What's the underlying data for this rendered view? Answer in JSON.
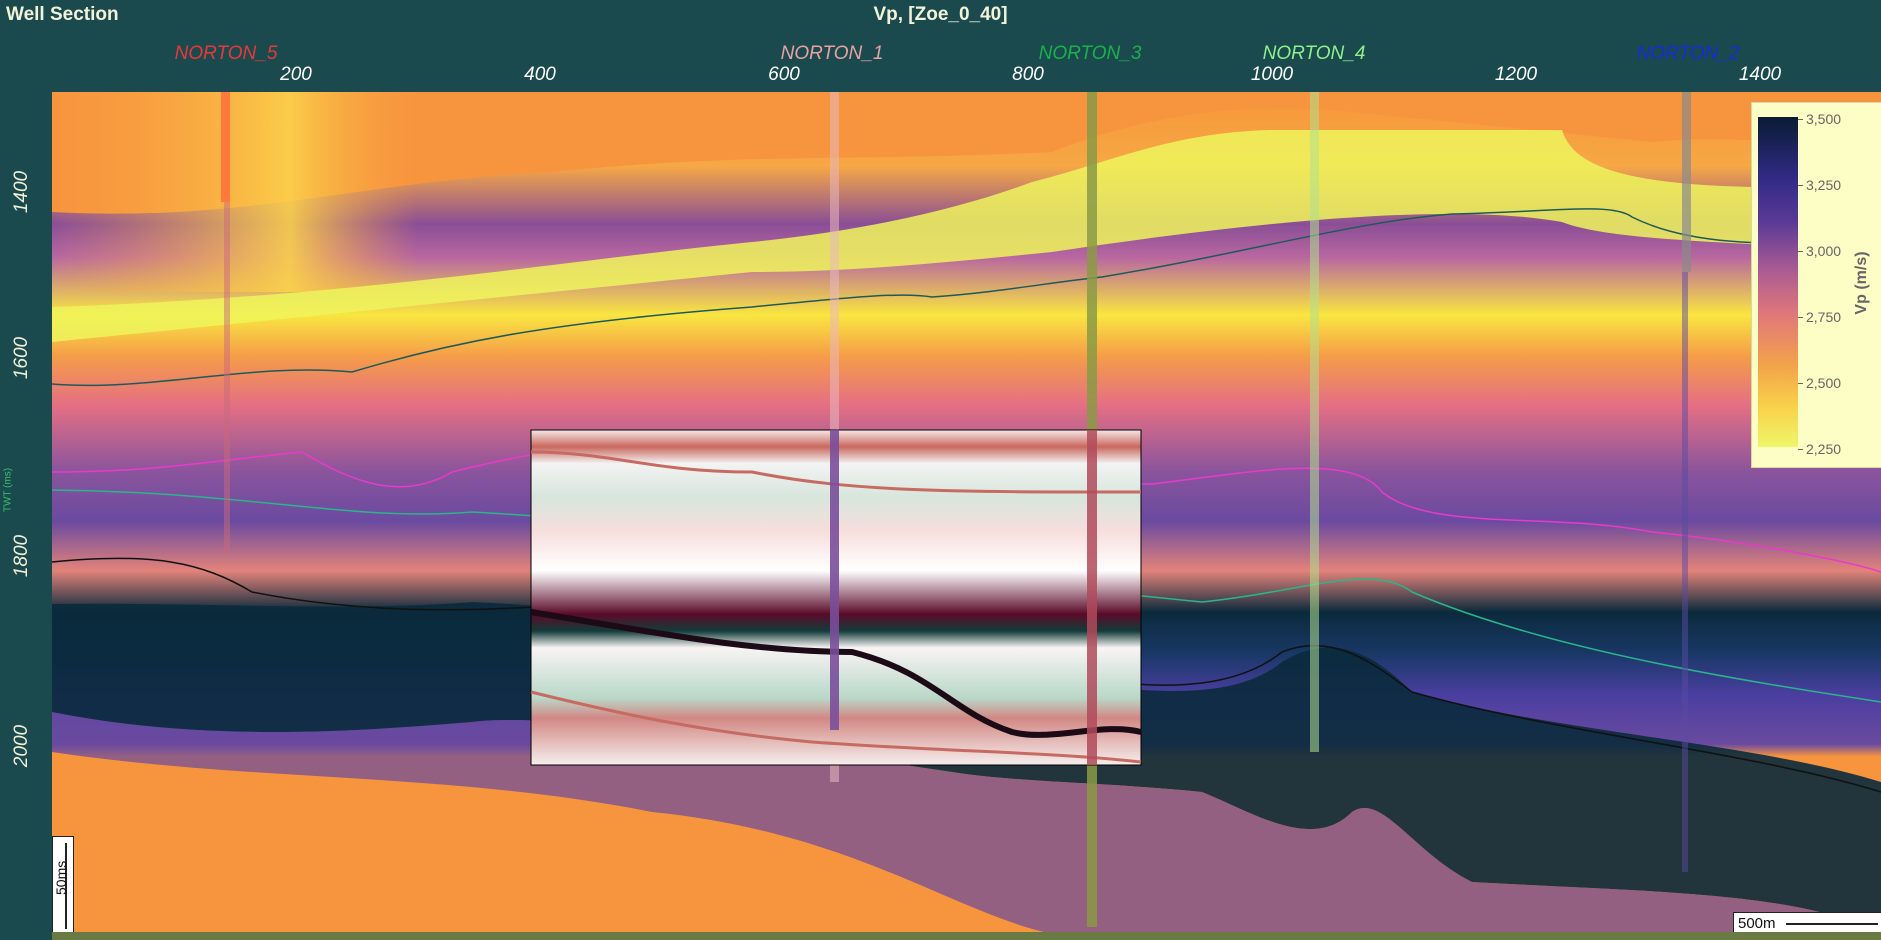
{
  "header": {
    "left_title": "Well Section",
    "center_title": "Vp, [Zoe_0_40]"
  },
  "wells": [
    {
      "name": "NORTON_5",
      "color": "#e8393a",
      "pos": 0.09
    },
    {
      "name": "NORTON_1",
      "color": "#e8a2a2",
      "pos": 0.424
    },
    {
      "name": "NORTON_3",
      "color": "#18b24a",
      "pos": 0.562
    },
    {
      "name": "NORTON_4",
      "color": "#8ff08a",
      "pos": 0.684
    },
    {
      "name": "NORTON_2",
      "color": "#1a2ad8",
      "pos": 0.896
    }
  ],
  "x_axis": {
    "ticks": [
      "200",
      "400",
      "600",
      "800",
      "1000",
      "1200",
      "1400"
    ]
  },
  "y_axis": {
    "title": "TWT (ms)",
    "ticks": [
      "1400",
      "1600",
      "1800",
      "2000"
    ]
  },
  "colorbar": {
    "title": "Vp (m/s)",
    "ticks": [
      "3,500",
      "3,250",
      "3,000",
      "2,750",
      "2,500",
      "2,250"
    ]
  },
  "scale_bars": {
    "vertical": "50ms",
    "horizontal": "500m"
  },
  "colors": {
    "background": "#1a4a4e",
    "accent_text": "#f2f2d8"
  }
}
